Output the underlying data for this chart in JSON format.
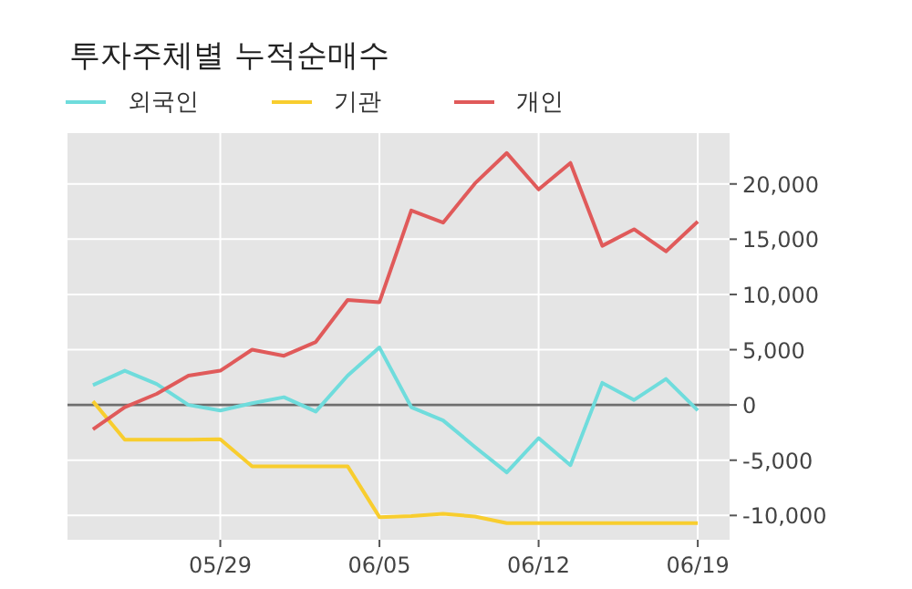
{
  "chart_data": {
    "type": "line",
    "title": "투자주체별 누적순매수",
    "categories": [
      null,
      null,
      null,
      null,
      "05/29",
      null,
      null,
      null,
      null,
      "06/05",
      null,
      null,
      null,
      null,
      "06/12",
      null,
      null,
      null,
      null,
      "06/19"
    ],
    "series": [
      {
        "name": "외국인",
        "color": "#6fdcdc",
        "values": [
          1800,
          3100,
          1900,
          0,
          -500,
          150,
          700,
          -600,
          2650,
          5200,
          -200,
          -1400,
          -3800,
          -6100,
          -3000,
          -5450,
          2000,
          450,
          2350,
          -500
        ]
      },
      {
        "name": "기관",
        "color": "#f8cd2e",
        "values": [
          330,
          -3150,
          -3150,
          -3150,
          -3100,
          -5550,
          -5550,
          -5550,
          -5550,
          -10150,
          -10050,
          -9850,
          -10100,
          -10700,
          -10700,
          -10700,
          -10700,
          -10700,
          -10700,
          -10700
        ]
      },
      {
        "name": "개인",
        "color": "#e05a5a",
        "values": [
          -2200,
          -200,
          1000,
          2650,
          3100,
          5000,
          4450,
          5700,
          9500,
          9300,
          17600,
          16500,
          20050,
          22800,
          19500,
          21900,
          14400,
          15900,
          13900,
          16600
        ]
      }
    ],
    "ylim": [
      -12200,
      24600
    ],
    "yticks": [
      {
        "value": -10000,
        "label": "-10,000"
      },
      {
        "value": -5000,
        "label": "-5,000"
      },
      0,
      {
        "value": 5000,
        "label": "5,000"
      },
      {
        "value": 10000,
        "label": "10,000"
      },
      {
        "value": 15000,
        "label": "15,000"
      },
      {
        "value": 20000,
        "label": "20,000"
      }
    ],
    "grid": true,
    "legend": "top left",
    "line_style": "solid",
    "ref_lines": [
      {
        "axis": "y",
        "value": 0,
        "color": "#6e6e6e"
      }
    ]
  }
}
